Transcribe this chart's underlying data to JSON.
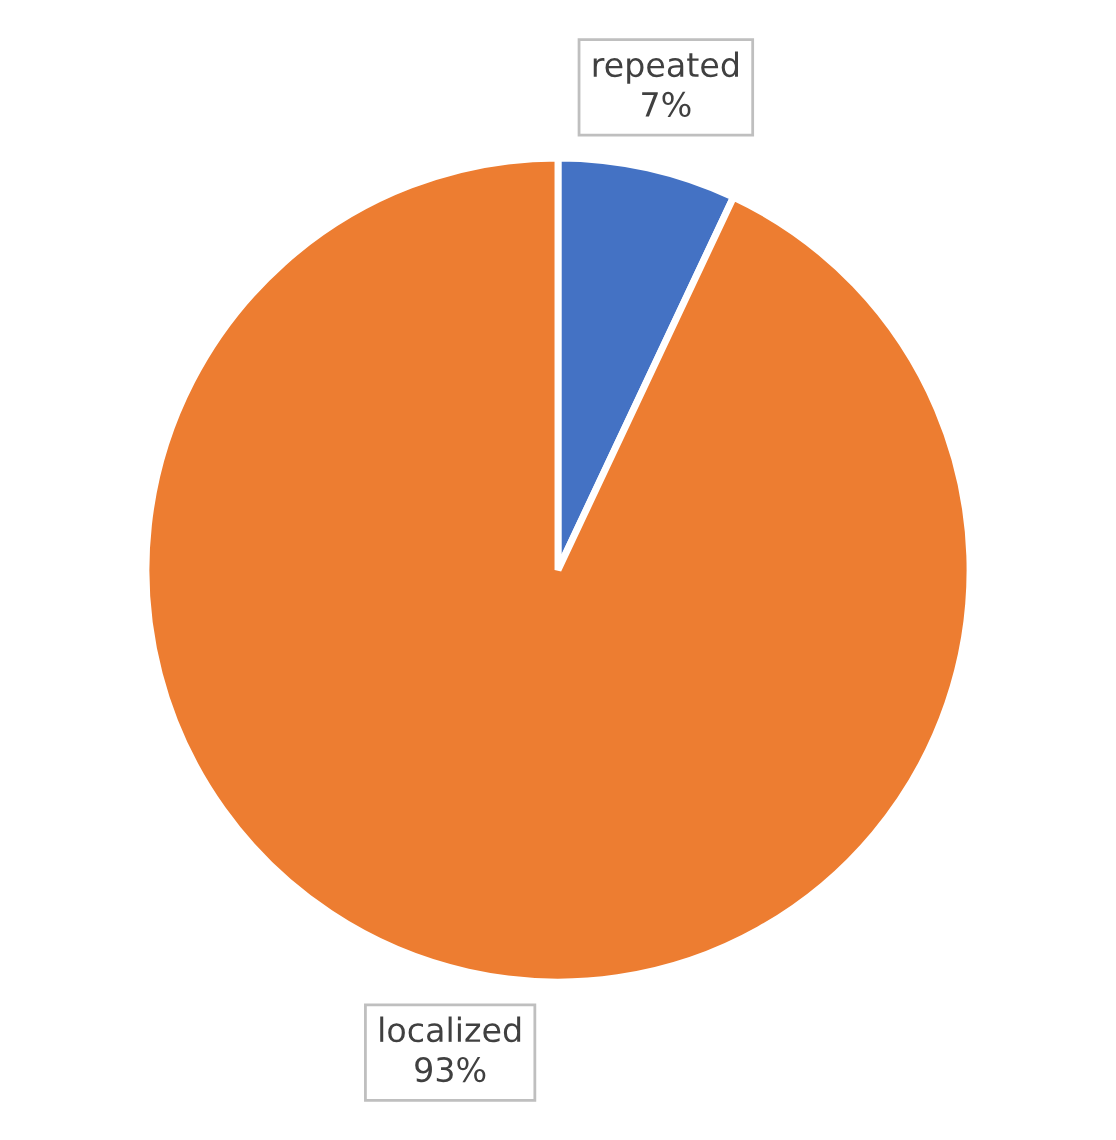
{
  "chart_data": {
    "type": "pie",
    "categories": [
      "repeated",
      "localized"
    ],
    "values": [
      7,
      93
    ],
    "colors": [
      "#4472c4",
      "#ed7d31"
    ],
    "value_labels": [
      "7%",
      "93%"
    ],
    "legend": false
  }
}
